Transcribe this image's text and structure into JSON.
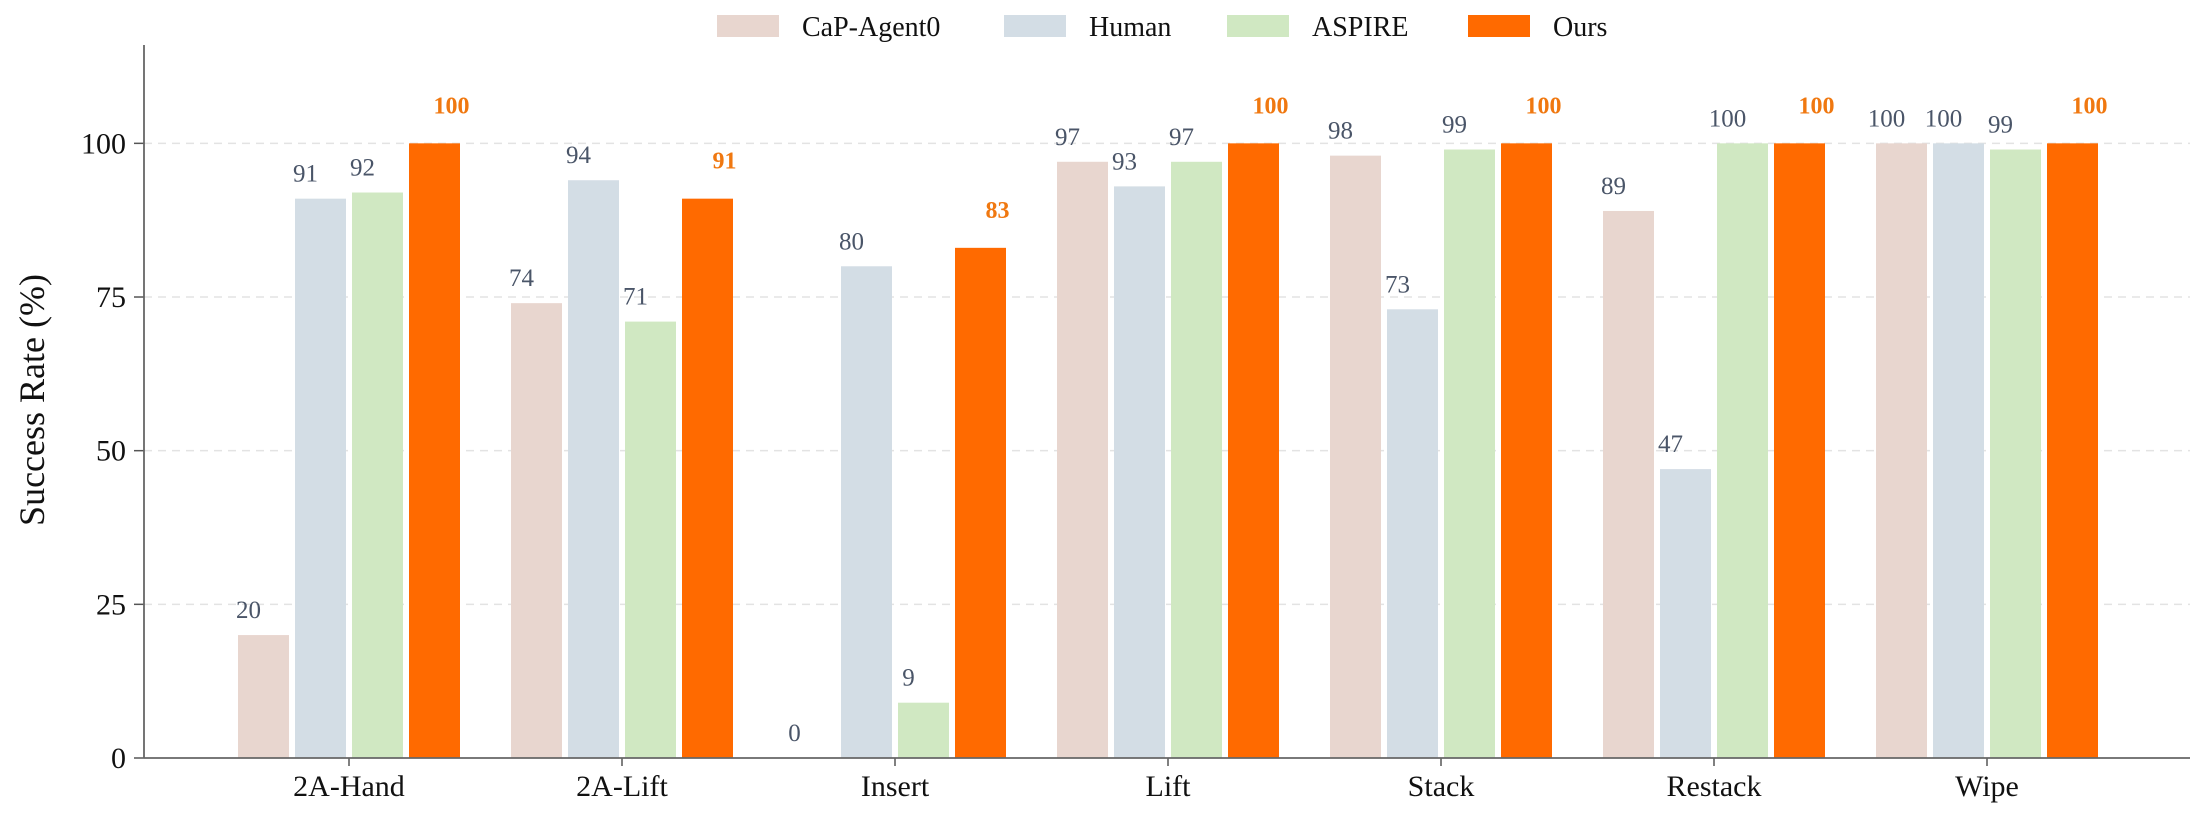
{
  "chart_data": {
    "type": "bar",
    "title": "",
    "xlabel": "",
    "ylabel": "Success Rate (%)",
    "ylim": [
      0,
      116
    ],
    "yticks": [
      0,
      25,
      50,
      75,
      100
    ],
    "grid": true,
    "legend_position": "top-center",
    "categories": [
      "2A-Hand",
      "2A-Lift",
      "Insert",
      "Lift",
      "Stack",
      "Restack",
      "Wipe"
    ],
    "series": [
      {
        "name": "CaP-Agent0",
        "color": "#e8d6cf",
        "label_color": "#4a5568",
        "emphasis": false,
        "values": [
          20,
          74,
          0,
          97,
          98,
          89,
          100
        ]
      },
      {
        "name": "Human",
        "color": "#d3dde5",
        "label_color": "#4a5568",
        "emphasis": false,
        "values": [
          91,
          94,
          80,
          93,
          73,
          47,
          100
        ]
      },
      {
        "name": "ASPIRE",
        "color": "#d0e8c2",
        "label_color": "#4a5568",
        "emphasis": false,
        "values": [
          92,
          71,
          9,
          97,
          99,
          100,
          99
        ]
      },
      {
        "name": "Ours",
        "color": "#ff6a00",
        "label_color": "#f07810",
        "emphasis": true,
        "values": [
          100,
          91,
          83,
          100,
          100,
          100,
          100
        ]
      }
    ]
  }
}
